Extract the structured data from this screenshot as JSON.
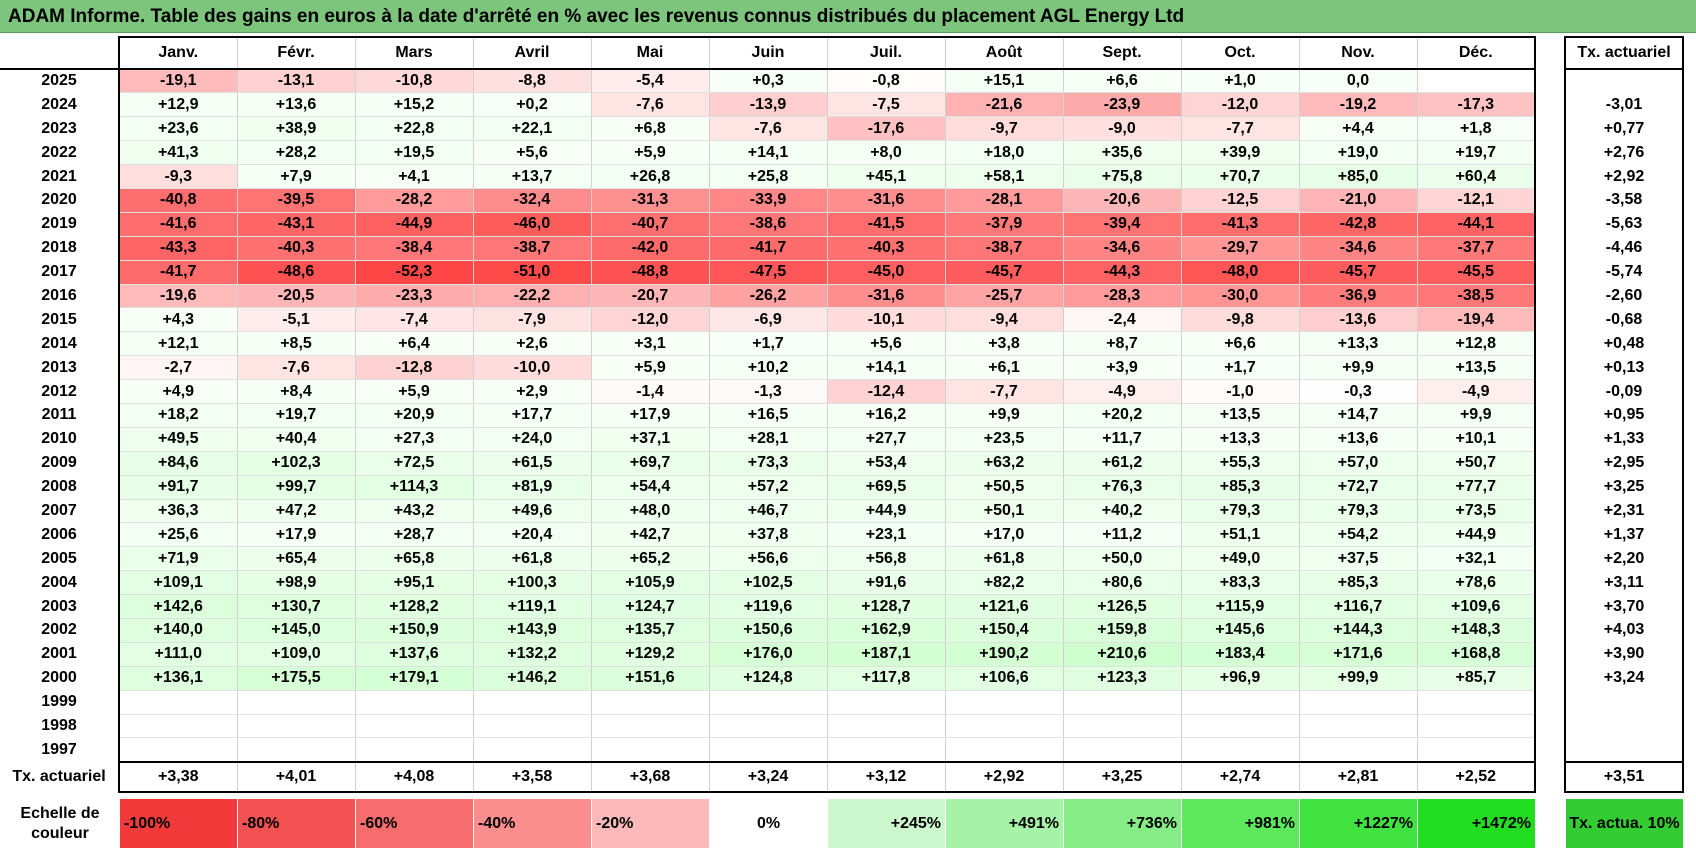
{
  "title": "ADAM Informe. Table des gains en euros à la date d'arrêté en % avec les revenus connus distribués du placement AGL Energy Ltd",
  "months": [
    "Janv.",
    "Févr.",
    "Mars",
    "Avril",
    "Mai",
    "Juin",
    "Juil.",
    "Août",
    "Sept.",
    "Oct.",
    "Nov.",
    "Déc."
  ],
  "actuarial_header": "Tx. actuariel",
  "rows": [
    {
      "year": "2025",
      "values": [
        "-19,1",
        "-13,1",
        "-10,8",
        "-8,8",
        "-5,4",
        "+0,3",
        "-0,8",
        "+15,1",
        "+6,6",
        "+1,0",
        "0,0",
        ""
      ],
      "actuarial": ""
    },
    {
      "year": "2024",
      "values": [
        "+12,9",
        "+13,6",
        "+15,2",
        "+0,2",
        "-7,6",
        "-13,9",
        "-7,5",
        "-21,6",
        "-23,9",
        "-12,0",
        "-19,2",
        "-17,3"
      ],
      "actuarial": "-3,01"
    },
    {
      "year": "2023",
      "values": [
        "+23,6",
        "+38,9",
        "+22,8",
        "+22,1",
        "+6,8",
        "-7,6",
        "-17,6",
        "-9,7",
        "-9,0",
        "-7,7",
        "+4,4",
        "+1,8"
      ],
      "actuarial": "+0,77"
    },
    {
      "year": "2022",
      "values": [
        "+41,3",
        "+28,2",
        "+19,5",
        "+5,6",
        "+5,9",
        "+14,1",
        "+8,0",
        "+18,0",
        "+35,6",
        "+39,9",
        "+19,0",
        "+19,7"
      ],
      "actuarial": "+2,76"
    },
    {
      "year": "2021",
      "values": [
        "-9,3",
        "+7,9",
        "+4,1",
        "+13,7",
        "+26,8",
        "+25,8",
        "+45,1",
        "+58,1",
        "+75,8",
        "+70,7",
        "+85,0",
        "+60,4"
      ],
      "actuarial": "+2,92"
    },
    {
      "year": "2020",
      "values": [
        "-40,8",
        "-39,5",
        "-28,2",
        "-32,4",
        "-31,3",
        "-33,9",
        "-31,6",
        "-28,1",
        "-20,6",
        "-12,5",
        "-21,0",
        "-12,1"
      ],
      "actuarial": "-3,58"
    },
    {
      "year": "2019",
      "values": [
        "-41,6",
        "-43,1",
        "-44,9",
        "-46,0",
        "-40,7",
        "-38,6",
        "-41,5",
        "-37,9",
        "-39,4",
        "-41,3",
        "-42,8",
        "-44,1"
      ],
      "actuarial": "-5,63"
    },
    {
      "year": "2018",
      "values": [
        "-43,3",
        "-40,3",
        "-38,4",
        "-38,7",
        "-42,0",
        "-41,7",
        "-40,3",
        "-38,7",
        "-34,6",
        "-29,7",
        "-34,6",
        "-37,7"
      ],
      "actuarial": "-4,46"
    },
    {
      "year": "2017",
      "values": [
        "-41,7",
        "-48,6",
        "-52,3",
        "-51,0",
        "-48,8",
        "-47,5",
        "-45,0",
        "-45,7",
        "-44,3",
        "-48,0",
        "-45,7",
        "-45,5"
      ],
      "actuarial": "-5,74"
    },
    {
      "year": "2016",
      "values": [
        "-19,6",
        "-20,5",
        "-23,3",
        "-22,2",
        "-20,7",
        "-26,2",
        "-31,6",
        "-25,7",
        "-28,3",
        "-30,0",
        "-36,9",
        "-38,5"
      ],
      "actuarial": "-2,60"
    },
    {
      "year": "2015",
      "values": [
        "+4,3",
        "-5,1",
        "-7,4",
        "-7,9",
        "-12,0",
        "-6,9",
        "-10,1",
        "-9,4",
        "-2,4",
        "-9,8",
        "-13,6",
        "-19,4"
      ],
      "actuarial": "-0,68"
    },
    {
      "year": "2014",
      "values": [
        "+12,1",
        "+8,5",
        "+6,4",
        "+2,6",
        "+3,1",
        "+1,7",
        "+5,6",
        "+3,8",
        "+8,7",
        "+6,6",
        "+13,3",
        "+12,8"
      ],
      "actuarial": "+0,48"
    },
    {
      "year": "2013",
      "values": [
        "-2,7",
        "-7,6",
        "-12,8",
        "-10,0",
        "+5,9",
        "+10,2",
        "+14,1",
        "+6,1",
        "+3,9",
        "+1,7",
        "+9,9",
        "+13,5"
      ],
      "actuarial": "+0,13"
    },
    {
      "year": "2012",
      "values": [
        "+4,9",
        "+8,4",
        "+5,9",
        "+2,9",
        "-1,4",
        "-1,3",
        "-12,4",
        "-7,7",
        "-4,9",
        "-1,0",
        "-0,3",
        "-4,9"
      ],
      "actuarial": "-0,09"
    },
    {
      "year": "2011",
      "values": [
        "+18,2",
        "+19,7",
        "+20,9",
        "+17,7",
        "+17,9",
        "+16,5",
        "+16,2",
        "+9,9",
        "+20,2",
        "+13,5",
        "+14,7",
        "+9,9"
      ],
      "actuarial": "+0,95"
    },
    {
      "year": "2010",
      "values": [
        "+49,5",
        "+40,4",
        "+27,3",
        "+24,0",
        "+37,1",
        "+28,1",
        "+27,7",
        "+23,5",
        "+11,7",
        "+13,3",
        "+13,6",
        "+10,1"
      ],
      "actuarial": "+1,33"
    },
    {
      "year": "2009",
      "values": [
        "+84,6",
        "+102,3",
        "+72,5",
        "+61,5",
        "+69,7",
        "+73,3",
        "+53,4",
        "+63,2",
        "+61,2",
        "+55,3",
        "+57,0",
        "+50,7"
      ],
      "actuarial": "+2,95"
    },
    {
      "year": "2008",
      "values": [
        "+91,7",
        "+99,7",
        "+114,3",
        "+81,9",
        "+54,4",
        "+57,2",
        "+69,5",
        "+50,5",
        "+76,3",
        "+85,3",
        "+72,7",
        "+77,7"
      ],
      "actuarial": "+3,25"
    },
    {
      "year": "2007",
      "values": [
        "+36,3",
        "+47,2",
        "+43,2",
        "+49,6",
        "+48,0",
        "+46,7",
        "+44,9",
        "+50,1",
        "+40,2",
        "+79,3",
        "+79,3",
        "+73,5"
      ],
      "actuarial": "+2,31"
    },
    {
      "year": "2006",
      "values": [
        "+25,6",
        "+17,9",
        "+28,7",
        "+20,4",
        "+42,7",
        "+37,8",
        "+23,1",
        "+17,0",
        "+11,2",
        "+51,1",
        "+54,2",
        "+44,9"
      ],
      "actuarial": "+1,37"
    },
    {
      "year": "2005",
      "values": [
        "+71,9",
        "+65,4",
        "+65,8",
        "+61,8",
        "+65,2",
        "+56,6",
        "+56,8",
        "+61,8",
        "+50,0",
        "+49,0",
        "+37,5",
        "+32,1"
      ],
      "actuarial": "+2,20"
    },
    {
      "year": "2004",
      "values": [
        "+109,1",
        "+98,9",
        "+95,1",
        "+100,3",
        "+105,9",
        "+102,5",
        "+91,6",
        "+82,2",
        "+80,6",
        "+83,3",
        "+85,3",
        "+78,6"
      ],
      "actuarial": "+3,11"
    },
    {
      "year": "2003",
      "values": [
        "+142,6",
        "+130,7",
        "+128,2",
        "+119,1",
        "+124,7",
        "+119,6",
        "+128,7",
        "+121,6",
        "+126,5",
        "+115,9",
        "+116,7",
        "+109,6"
      ],
      "actuarial": "+3,70"
    },
    {
      "year": "2002",
      "values": [
        "+140,0",
        "+145,0",
        "+150,9",
        "+143,9",
        "+135,7",
        "+150,6",
        "+162,9",
        "+150,4",
        "+159,8",
        "+145,6",
        "+144,3",
        "+148,3"
      ],
      "actuarial": "+4,03"
    },
    {
      "year": "2001",
      "values": [
        "+111,0",
        "+109,0",
        "+137,6",
        "+132,2",
        "+129,2",
        "+176,0",
        "+187,1",
        "+190,2",
        "+210,6",
        "+183,4",
        "+171,6",
        "+168,8"
      ],
      "actuarial": "+3,90"
    },
    {
      "year": "2000",
      "values": [
        "+136,1",
        "+175,5",
        "+179,1",
        "+146,2",
        "+151,6",
        "+124,8",
        "+117,8",
        "+106,6",
        "+123,3",
        "+96,9",
        "+99,9",
        "+85,7"
      ],
      "actuarial": "+3,24"
    },
    {
      "year": "1999",
      "values": [
        "",
        "",
        "",
        "",
        "",
        "",
        "",
        "",
        "",
        "",
        "",
        ""
      ],
      "actuarial": ""
    },
    {
      "year": "1998",
      "values": [
        "",
        "",
        "",
        "",
        "",
        "",
        "",
        "",
        "",
        "",
        "",
        ""
      ],
      "actuarial": ""
    },
    {
      "year": "1997",
      "values": [
        "",
        "",
        "",
        "",
        "",
        "",
        "",
        "",
        "",
        "",
        "",
        ""
      ],
      "actuarial": ""
    }
  ],
  "footer": {
    "label": "Tx. actuariel",
    "values": [
      "+3,38",
      "+4,01",
      "+4,08",
      "+3,58",
      "+3,68",
      "+3,24",
      "+3,12",
      "+2,92",
      "+3,25",
      "+2,74",
      "+2,81",
      "+2,52"
    ],
    "actuarial": "+3,51"
  },
  "scale": {
    "label": "Echelle de couleur",
    "steps": [
      {
        "text": "-100%",
        "color": "#f23a3a",
        "side": "neg"
      },
      {
        "text": "-80%",
        "color": "#f45252",
        "side": "neg"
      },
      {
        "text": "-60%",
        "color": "#f76d6d",
        "side": "neg"
      },
      {
        "text": "-40%",
        "color": "#fa8e8e",
        "side": "neg"
      },
      {
        "text": "-20%",
        "color": "#fcb9b9",
        "side": "neg"
      },
      {
        "text": "0%",
        "color": "#ffffff",
        "side": "zero"
      },
      {
        "text": "+245%",
        "color": "#ccf7cc",
        "side": "pos"
      },
      {
        "text": "+491%",
        "color": "#a6f2a6",
        "side": "pos"
      },
      {
        "text": "+736%",
        "color": "#86ec86",
        "side": "pos"
      },
      {
        "text": "+981%",
        "color": "#5ee85e",
        "side": "pos"
      },
      {
        "text": "+1227%",
        "color": "#3fe23f",
        "side": "pos"
      },
      {
        "text": "+1472%",
        "color": "#22dd22",
        "side": "pos"
      }
    ],
    "actuarial_label": "Tx. actua. 10%",
    "actuarial_color": "#33cc33"
  }
}
